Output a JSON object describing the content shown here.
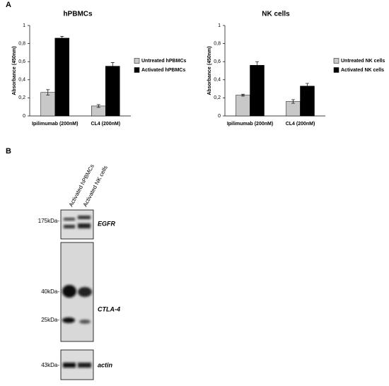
{
  "panel_labels": [
    "A",
    "B"
  ],
  "chart_data": [
    {
      "type": "bar",
      "title": "hPBMCs",
      "y_label": "Absorbance (450nm)",
      "categories": [
        "Ipilimumab (200nM)",
        "CL4 (200nM)"
      ],
      "series": [
        {
          "name": "Untreated hPBMCs",
          "color": "#c8c8c8",
          "values": [
            0.26,
            0.11
          ],
          "errors": [
            0.03,
            0.015
          ]
        },
        {
          "name": "Activated hPBMCs",
          "color": "#000000",
          "values": [
            0.86,
            0.55
          ],
          "errors": [
            0.02,
            0.04
          ]
        }
      ],
      "ylim": [
        0,
        1
      ],
      "yticks": [
        0,
        {
          "value": 0.2,
          "label": "0,2"
        },
        {
          "value": 0.4,
          "label": "0,4"
        },
        {
          "value": 0.6,
          "label": "0,6"
        },
        {
          "value": 0.8,
          "label": "0,8"
        },
        1
      ],
      "legend": "right"
    },
    {
      "type": "bar",
      "title": "NK cells",
      "y_label": "Absorbance (450nm)",
      "categories": [
        "Ipilimumab (200nM)",
        "CL4 (200nM)"
      ],
      "series": [
        {
          "name": "Untreated NK cells",
          "color": "#c8c8c8",
          "values": [
            0.23,
            0.16
          ],
          "errors": [
            0.01,
            0.02
          ]
        },
        {
          "name": "Activated NK cells",
          "color": "#000000",
          "values": [
            0.56,
            0.33
          ],
          "errors": [
            0.04,
            0.03
          ]
        }
      ],
      "ylim": [
        0,
        1
      ],
      "yticks": [
        0,
        {
          "value": 0.2,
          "label": "0,2"
        },
        {
          "value": 0.4,
          "label": "0,4"
        },
        {
          "value": 0.6,
          "label": "0,6"
        },
        {
          "value": 0.8,
          "label": "0,8"
        },
        1
      ],
      "legend": "right"
    }
  ],
  "blot": {
    "lanes": [
      "Activated hPBMCs",
      "Activated NK cells"
    ],
    "markers": [
      "175kDa-",
      "40kDa-",
      "25kDa-",
      "43kDa-"
    ],
    "proteins": [
      "EGFR",
      "CTLA-4",
      "actin"
    ]
  }
}
